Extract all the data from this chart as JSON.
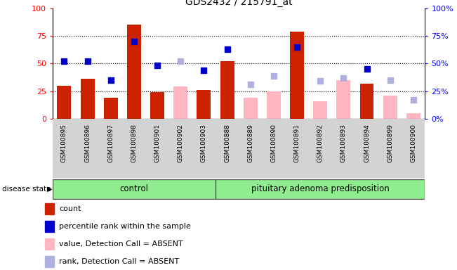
{
  "title": "GDS2432 / 215791_at",
  "samples": [
    "GSM100895",
    "GSM100896",
    "GSM100897",
    "GSM100898",
    "GSM100901",
    "GSM100902",
    "GSM100903",
    "GSM100888",
    "GSM100889",
    "GSM100890",
    "GSM100891",
    "GSM100892",
    "GSM100893",
    "GSM100894",
    "GSM100899",
    "GSM100900"
  ],
  "n_control": 7,
  "n_pit": 9,
  "count_values": [
    30,
    36,
    19,
    85,
    24,
    null,
    26,
    52,
    null,
    null,
    79,
    null,
    null,
    32,
    null,
    null
  ],
  "count_absent": [
    false,
    false,
    false,
    false,
    false,
    true,
    false,
    false,
    true,
    true,
    false,
    true,
    true,
    false,
    true,
    true
  ],
  "percentile_values": [
    52,
    52,
    35,
    70,
    48,
    52,
    44,
    63,
    null,
    38,
    65,
    null,
    null,
    45,
    null,
    null
  ],
  "percentile_absent": [
    false,
    false,
    false,
    false,
    false,
    true,
    false,
    false,
    true,
    true,
    false,
    true,
    true,
    false,
    true,
    true
  ],
  "pink_bar_values": [
    null,
    null,
    null,
    null,
    null,
    29,
    null,
    null,
    19,
    25,
    null,
    16,
    35,
    null,
    21,
    5
  ],
  "lavender_values": [
    null,
    null,
    null,
    null,
    null,
    52,
    null,
    null,
    31,
    39,
    null,
    34,
    37,
    null,
    35,
    17
  ],
  "bar_color_red": "#cc2200",
  "bar_color_pink": "#ffb6c1",
  "dot_color_blue": "#0000cc",
  "dot_color_lavender": "#b0b0e0",
  "group_color": "#90EE90",
  "ylim": [
    0,
    100
  ],
  "yticks": [
    0,
    25,
    50,
    75,
    100
  ],
  "legend_items": [
    {
      "label": "count",
      "color": "#cc2200"
    },
    {
      "label": "percentile rank within the sample",
      "color": "#0000cc"
    },
    {
      "label": "value, Detection Call = ABSENT",
      "color": "#ffb6c1"
    },
    {
      "label": "rank, Detection Call = ABSENT",
      "color": "#b0b0e0"
    }
  ]
}
